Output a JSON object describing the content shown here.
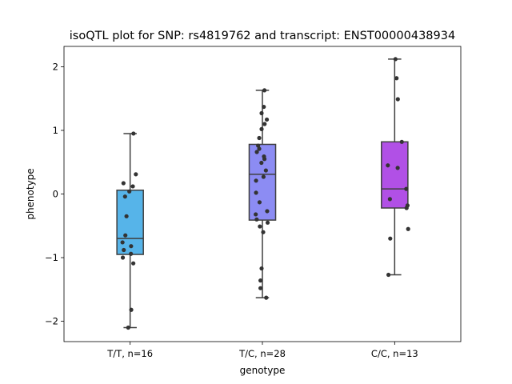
{
  "chart_data": {
    "type": "box",
    "title": "isoQTL plot for SNP: rs4819762 and transcript: ENST00000438934",
    "xlabel": "genotype",
    "ylabel": "phenotype",
    "ylim": [
      -2.32,
      2.32
    ],
    "yticks": [
      -2,
      -1,
      0,
      1,
      2
    ],
    "ytick_labels": [
      "−2",
      "−1",
      "0",
      "1",
      "2"
    ],
    "grid": false,
    "categories": [
      "T/T, n=16",
      "T/C, n=28",
      "C/C, n=13"
    ],
    "colors": [
      "#56B4E9",
      "#8C8CF3",
      "#B150E6"
    ],
    "boxes": [
      {
        "whisker_low": -2.1,
        "q1": -0.95,
        "median": -0.7,
        "q3": 0.06,
        "whisker_high": 0.95
      },
      {
        "whisker_low": -1.63,
        "q1": -0.41,
        "median": 0.31,
        "q3": 0.78,
        "whisker_high": 1.63
      },
      {
        "whisker_low": -1.27,
        "q1": -0.22,
        "median": 0.08,
        "q3": 0.82,
        "whisker_high": 2.12
      }
    ],
    "points": [
      [
        {
          "dx": 0.21,
          "y": 0.95
        },
        {
          "dx": 0.36,
          "y": 0.31
        },
        {
          "dx": -0.42,
          "y": 0.17
        },
        {
          "dx": 0.17,
          "y": 0.12
        },
        {
          "dx": -0.05,
          "y": 0.04
        },
        {
          "dx": -0.32,
          "y": -0.04
        },
        {
          "dx": -0.23,
          "y": -0.35
        },
        {
          "dx": -0.3,
          "y": -0.65
        },
        {
          "dx": -0.48,
          "y": -0.76
        },
        {
          "dx": -0.4,
          "y": -0.88
        },
        {
          "dx": 0.06,
          "y": -0.82
        },
        {
          "dx": 0.05,
          "y": -0.94
        },
        {
          "dx": -0.46,
          "y": -1.0
        },
        {
          "dx": 0.2,
          "y": -1.09
        },
        {
          "dx": 0.07,
          "y": -1.82
        },
        {
          "dx": -0.12,
          "y": -2.1
        }
      ],
      [
        {
          "dx": 0.13,
          "y": 1.63
        },
        {
          "dx": 0.09,
          "y": 1.37
        },
        {
          "dx": -0.05,
          "y": 1.27
        },
        {
          "dx": 0.28,
          "y": 1.17
        },
        {
          "dx": 0.14,
          "y": 1.1
        },
        {
          "dx": -0.05,
          "y": 1.02
        },
        {
          "dx": -0.2,
          "y": 0.88
        },
        {
          "dx": -0.27,
          "y": 0.76
        },
        {
          "dx": -0.2,
          "y": 0.71
        },
        {
          "dx": -0.35,
          "y": 0.66
        },
        {
          "dx": 0.1,
          "y": 0.59
        },
        {
          "dx": 0.13,
          "y": 0.55
        },
        {
          "dx": -0.06,
          "y": 0.49
        },
        {
          "dx": 0.22,
          "y": 0.37
        },
        {
          "dx": 0.07,
          "y": 0.27
        },
        {
          "dx": -0.4,
          "y": 0.21
        },
        {
          "dx": -0.4,
          "y": 0.02
        },
        {
          "dx": -0.18,
          "y": -0.13
        },
        {
          "dx": 0.3,
          "y": -0.27
        },
        {
          "dx": -0.42,
          "y": -0.32
        },
        {
          "dx": -0.36,
          "y": -0.4
        },
        {
          "dx": 0.33,
          "y": -0.45
        },
        {
          "dx": -0.16,
          "y": -0.51
        },
        {
          "dx": 0.05,
          "y": -0.6
        },
        {
          "dx": -0.05,
          "y": -1.17
        },
        {
          "dx": -0.12,
          "y": -1.36
        },
        {
          "dx": -0.12,
          "y": -1.48
        },
        {
          "dx": 0.24,
          "y": -1.63
        }
      ],
      [
        {
          "dx": 0.05,
          "y": 2.12
        },
        {
          "dx": 0.12,
          "y": 1.82
        },
        {
          "dx": 0.2,
          "y": 1.49
        },
        {
          "dx": 0.45,
          "y": 0.82
        },
        {
          "dx": -0.43,
          "y": 0.45
        },
        {
          "dx": 0.19,
          "y": 0.41
        },
        {
          "dx": 0.73,
          "y": 0.08
        },
        {
          "dx": -0.3,
          "y": -0.08
        },
        {
          "dx": 0.81,
          "y": -0.18
        },
        {
          "dx": 0.75,
          "y": -0.22
        },
        {
          "dx": 0.85,
          "y": -0.55
        },
        {
          "dx": -0.28,
          "y": -0.7
        },
        {
          "dx": -0.39,
          "y": -1.27
        }
      ]
    ]
  }
}
